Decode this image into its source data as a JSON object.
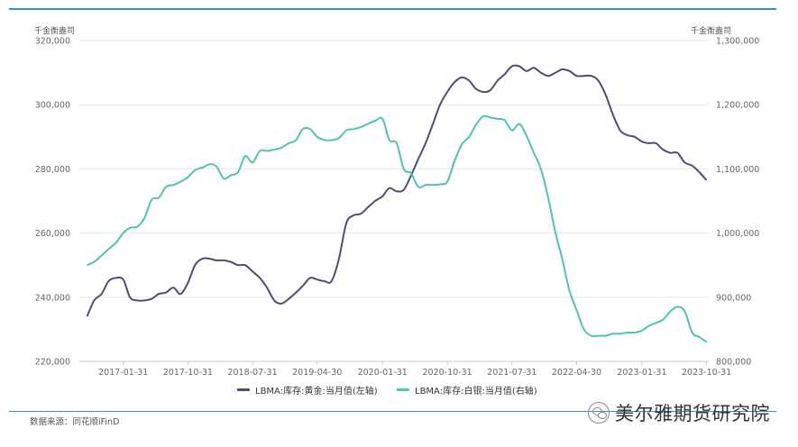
{
  "chart_data": {
    "type": "line",
    "y_left_unit": "千金衡盎司",
    "y_right_unit": "千金衡盎司",
    "y_left_range": [
      220000,
      320000
    ],
    "y_right_range": [
      800000,
      1300000
    ],
    "y_left_ticks": [
      "220,000",
      "240,000",
      "260,000",
      "280,000",
      "300,000",
      "320,000"
    ],
    "y_right_ticks": [
      "800,000",
      "900,000",
      "1,000,000",
      "1,100,000",
      "1,200,000",
      "1,300,000"
    ],
    "x_ticks": [
      "2017-01-31",
      "2017-10-31",
      "2018-07-31",
      "2019-04-30",
      "2020-01-31",
      "2020-10-31",
      "2021-07-31",
      "2022-04-30",
      "2023-01-31",
      "2023-10-31"
    ],
    "grid": "horizontal",
    "legend_position": "bottom",
    "series": [
      {
        "name": "LBMA:库存:黄金:当月值(左轴)",
        "axis": "left",
        "color": "#4a5074",
        "points": [
          [
            "2016-08-31",
            234000
          ],
          [
            "2016-09-30",
            239000
          ],
          [
            "2016-10-31",
            241000
          ],
          [
            "2016-11-30",
            245000
          ],
          [
            "2016-12-31",
            246000
          ],
          [
            "2017-01-31",
            245500
          ],
          [
            "2017-02-28",
            240000
          ],
          [
            "2017-03-31",
            239000
          ],
          [
            "2017-04-30",
            239000
          ],
          [
            "2017-05-31",
            239500
          ],
          [
            "2017-06-30",
            241000
          ],
          [
            "2017-07-31",
            241500
          ],
          [
            "2017-08-31",
            243000
          ],
          [
            "2017-09-30",
            241000
          ],
          [
            "2017-10-31",
            244500
          ],
          [
            "2017-11-30",
            250000
          ],
          [
            "2017-12-31",
            252000
          ],
          [
            "2018-01-31",
            252000
          ],
          [
            "2018-02-28",
            251500
          ],
          [
            "2018-03-31",
            251500
          ],
          [
            "2018-04-30",
            251000
          ],
          [
            "2018-05-31",
            250000
          ],
          [
            "2018-06-30",
            250000
          ],
          [
            "2018-07-31",
            248000
          ],
          [
            "2018-08-31",
            246000
          ],
          [
            "2018-09-30",
            243000
          ],
          [
            "2018-10-31",
            239000
          ],
          [
            "2018-11-30",
            238000
          ],
          [
            "2018-12-31",
            239500
          ],
          [
            "2019-01-31",
            241500
          ],
          [
            "2019-02-28",
            243500
          ],
          [
            "2019-03-31",
            246000
          ],
          [
            "2019-04-30",
            245500
          ],
          [
            "2019-05-31",
            245000
          ],
          [
            "2019-06-30",
            245000
          ],
          [
            "2019-07-31",
            252000
          ],
          [
            "2019-08-31",
            263000
          ],
          [
            "2019-09-30",
            265500
          ],
          [
            "2019-10-31",
            266000
          ],
          [
            "2019-11-30",
            268000
          ],
          [
            "2019-12-31",
            270000
          ],
          [
            "2020-01-31",
            271500
          ],
          [
            "2020-02-29",
            274000
          ],
          [
            "2020-03-31",
            273000
          ],
          [
            "2020-04-30",
            273500
          ],
          [
            "2020-05-31",
            278000
          ],
          [
            "2020-06-30",
            283000
          ],
          [
            "2020-07-31",
            288000
          ],
          [
            "2020-08-31",
            294000
          ],
          [
            "2020-09-30",
            300000
          ],
          [
            "2020-10-31",
            304000
          ],
          [
            "2020-11-30",
            307000
          ],
          [
            "2020-12-31",
            308500
          ],
          [
            "2021-01-31",
            307500
          ],
          [
            "2021-02-28",
            305000
          ],
          [
            "2021-03-31",
            304000
          ],
          [
            "2021-04-30",
            304500
          ],
          [
            "2021-05-31",
            307500
          ],
          [
            "2021-06-30",
            309500
          ],
          [
            "2021-07-31",
            312000
          ],
          [
            "2021-08-31",
            312000
          ],
          [
            "2021-09-30",
            310500
          ],
          [
            "2021-10-31",
            311500
          ],
          [
            "2021-11-30",
            310000
          ],
          [
            "2021-12-31",
            309000
          ],
          [
            "2022-01-31",
            310000
          ],
          [
            "2022-02-28",
            311000
          ],
          [
            "2022-03-31",
            310500
          ],
          [
            "2022-04-30",
            309000
          ],
          [
            "2022-05-31",
            309000
          ],
          [
            "2022-06-30",
            309000
          ],
          [
            "2022-07-31",
            307500
          ],
          [
            "2022-08-31",
            303000
          ],
          [
            "2022-09-30",
            297000
          ],
          [
            "2022-10-31",
            292000
          ],
          [
            "2022-11-30",
            290500
          ],
          [
            "2022-12-31",
            290000
          ],
          [
            "2023-01-31",
            288500
          ],
          [
            "2023-02-28",
            288000
          ],
          [
            "2023-03-31",
            288000
          ],
          [
            "2023-04-30",
            286000
          ],
          [
            "2023-05-31",
            285000
          ],
          [
            "2023-06-30",
            285000
          ],
          [
            "2023-07-31",
            282000
          ],
          [
            "2023-08-31",
            281000
          ],
          [
            "2023-09-30",
            279000
          ],
          [
            "2023-10-31",
            276500
          ]
        ]
      },
      {
        "name": "LBMA:库存:白银:当月值(右轴)",
        "axis": "right",
        "color": "#4fc4b0",
        "points": [
          [
            "2016-08-31",
            950000
          ],
          [
            "2016-09-30",
            955000
          ],
          [
            "2016-10-31",
            965000
          ],
          [
            "2016-11-30",
            975000
          ],
          [
            "2016-12-31",
            985000
          ],
          [
            "2017-01-31",
            1000000
          ],
          [
            "2017-02-28",
            1008000
          ],
          [
            "2017-03-31",
            1010000
          ],
          [
            "2017-04-30",
            1023000
          ],
          [
            "2017-05-31",
            1052000
          ],
          [
            "2017-06-30",
            1055000
          ],
          [
            "2017-07-31",
            1072000
          ],
          [
            "2017-08-31",
            1075000
          ],
          [
            "2017-09-30",
            1080000
          ],
          [
            "2017-10-31",
            1087000
          ],
          [
            "2017-11-30",
            1098000
          ],
          [
            "2017-12-31",
            1102000
          ],
          [
            "2018-01-31",
            1107000
          ],
          [
            "2018-02-28",
            1104000
          ],
          [
            "2018-03-31",
            1085000
          ],
          [
            "2018-04-30",
            1090000
          ],
          [
            "2018-05-31",
            1095000
          ],
          [
            "2018-06-30",
            1120000
          ],
          [
            "2018-07-31",
            1110000
          ],
          [
            "2018-08-31",
            1128000
          ],
          [
            "2018-09-30",
            1128000
          ],
          [
            "2018-10-31",
            1130000
          ],
          [
            "2018-11-30",
            1133000
          ],
          [
            "2018-12-31",
            1140000
          ],
          [
            "2019-01-31",
            1145000
          ],
          [
            "2019-02-28",
            1162000
          ],
          [
            "2019-03-31",
            1162000
          ],
          [
            "2019-04-30",
            1150000
          ],
          [
            "2019-05-31",
            1145000
          ],
          [
            "2019-06-30",
            1145000
          ],
          [
            "2019-07-31",
            1148000
          ],
          [
            "2019-08-31",
            1160000
          ],
          [
            "2019-09-30",
            1162000
          ],
          [
            "2019-10-31",
            1165000
          ],
          [
            "2019-11-30",
            1170000
          ],
          [
            "2019-12-31",
            1175000
          ],
          [
            "2020-01-31",
            1178000
          ],
          [
            "2020-02-29",
            1145000
          ],
          [
            "2020-03-31",
            1140000
          ],
          [
            "2020-04-30",
            1100000
          ],
          [
            "2020-05-31",
            1093000
          ],
          [
            "2020-06-30",
            1072000
          ],
          [
            "2020-07-31",
            1075000
          ],
          [
            "2020-08-31",
            1075000
          ],
          [
            "2020-09-30",
            1076000
          ],
          [
            "2020-10-31",
            1080000
          ],
          [
            "2020-11-30",
            1112000
          ],
          [
            "2020-12-31",
            1138000
          ],
          [
            "2021-01-31",
            1150000
          ],
          [
            "2021-02-28",
            1168000
          ],
          [
            "2021-03-31",
            1182000
          ],
          [
            "2021-04-30",
            1180000
          ],
          [
            "2021-05-31",
            1178000
          ],
          [
            "2021-06-30",
            1176000
          ],
          [
            "2021-07-31",
            1160000
          ],
          [
            "2021-08-31",
            1170000
          ],
          [
            "2021-09-30",
            1152000
          ],
          [
            "2021-10-31",
            1125000
          ],
          [
            "2021-11-30",
            1100000
          ],
          [
            "2021-12-31",
            1055000
          ],
          [
            "2022-01-31",
            1000000
          ],
          [
            "2022-02-28",
            960000
          ],
          [
            "2022-03-31",
            910000
          ],
          [
            "2022-04-30",
            880000
          ],
          [
            "2022-05-31",
            850000
          ],
          [
            "2022-06-30",
            840000
          ],
          [
            "2022-07-31",
            840000
          ],
          [
            "2022-08-31",
            840000
          ],
          [
            "2022-09-30",
            843000
          ],
          [
            "2022-10-31",
            843000
          ],
          [
            "2022-11-30",
            845000
          ],
          [
            "2022-12-31",
            845000
          ],
          [
            "2023-01-31",
            848000
          ],
          [
            "2023-02-28",
            855000
          ],
          [
            "2023-03-31",
            860000
          ],
          [
            "2023-04-30",
            865000
          ],
          [
            "2023-05-31",
            878000
          ],
          [
            "2023-06-30",
            885000
          ],
          [
            "2023-07-31",
            878000
          ],
          [
            "2023-08-31",
            845000
          ],
          [
            "2023-09-30",
            838000
          ],
          [
            "2023-10-31",
            830000
          ]
        ]
      }
    ]
  },
  "footer": {
    "source": "数据来源：同花顺iFinD",
    "watermark": "美尔雅期货研究院"
  }
}
